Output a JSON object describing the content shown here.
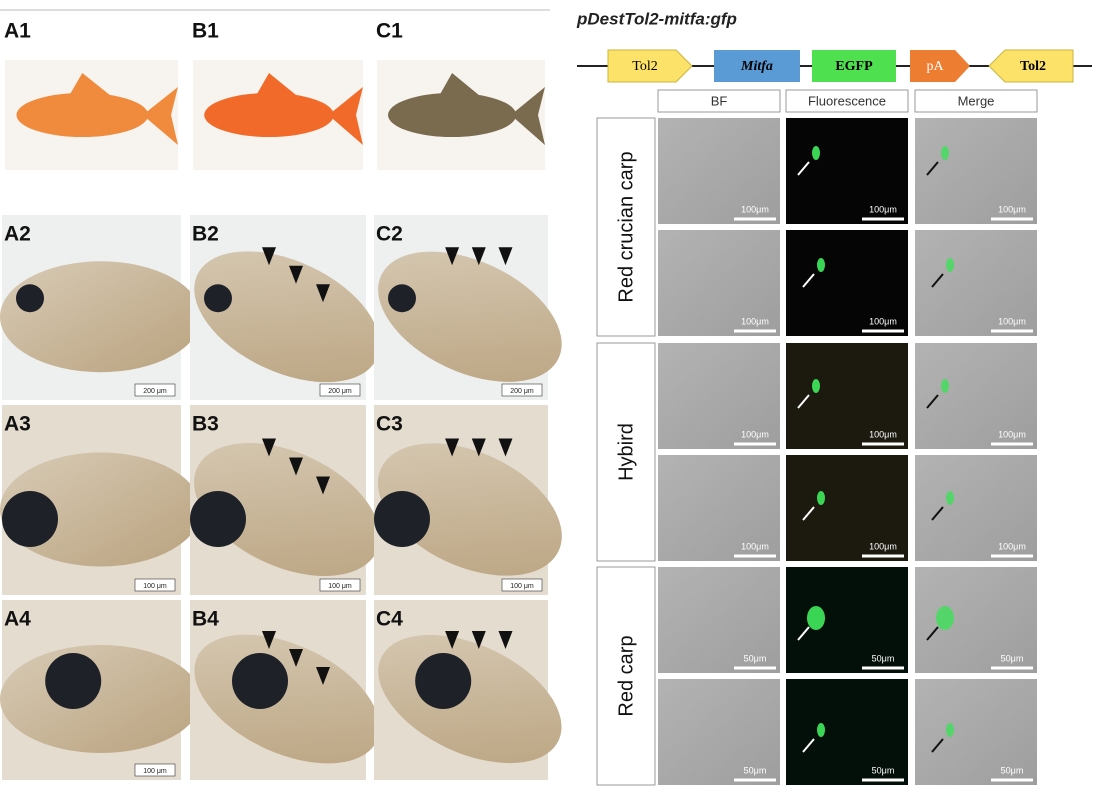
{
  "left_panel": {
    "labels": [
      "A1",
      "B1",
      "C1",
      "A2",
      "B2",
      "C2",
      "A3",
      "B3",
      "C3",
      "A4",
      "B4",
      "C4"
    ],
    "scale_bars": [
      "200 μm",
      "200 μm",
      "200 μm",
      "100 μm",
      "100 μm",
      "100 μm",
      "100 μm"
    ]
  },
  "right_panel": {
    "title": "pDestTol2-mitfa:gfp",
    "construct": [
      "Tol2",
      "Mitfa",
      "EGFP",
      "pA",
      "Tol2"
    ],
    "columns": [
      "BF",
      "Fluorescence",
      "Merge"
    ],
    "rows": [
      {
        "label": "Red crucian carp",
        "scale": "100μm"
      },
      {
        "label": "Hybird",
        "scale": "100μm"
      },
      {
        "label": "Red carp",
        "scale": "50μm"
      }
    ]
  }
}
